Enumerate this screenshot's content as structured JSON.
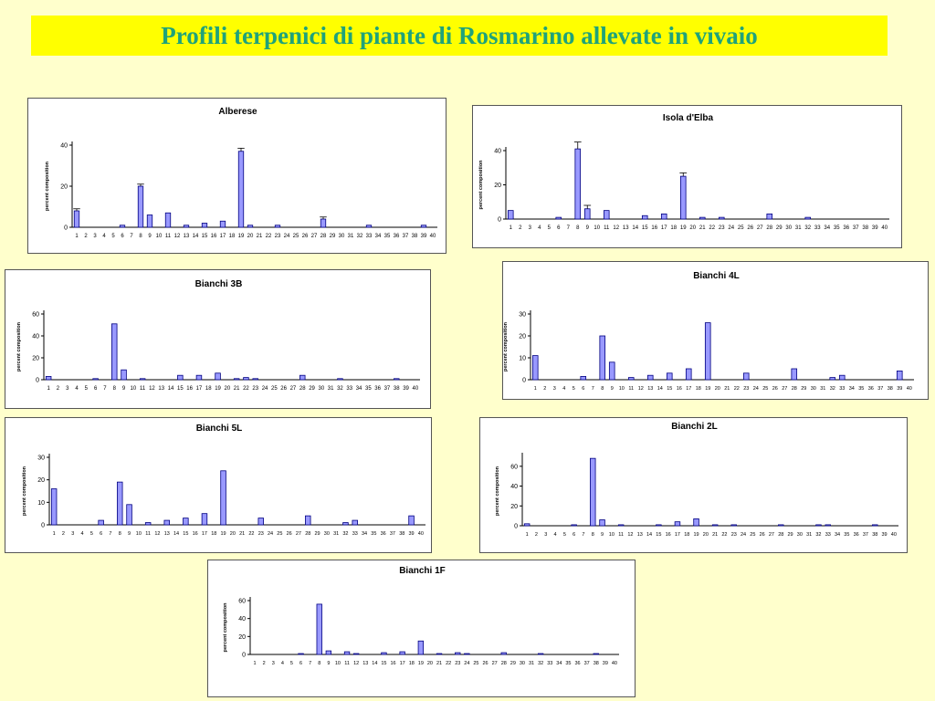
{
  "page": {
    "title": "Profili terpenici di piante di Rosmarino allevate in vivaio"
  },
  "colors": {
    "background": "#ffffcc",
    "title_bar": "#ffff00",
    "title_text": "#1fa37a",
    "bar_fill": "#9999ff",
    "bar_stroke": "#000080"
  },
  "chart_data": [
    {
      "type": "bar",
      "title": "Alberese",
      "ylabel": "percent composition",
      "ylim": [
        0,
        40
      ],
      "yticks": [
        0,
        20,
        40
      ],
      "categories": [
        "1",
        "2",
        "3",
        "4",
        "5",
        "6",
        "7",
        "8",
        "9",
        "10",
        "11",
        "12",
        "13",
        "14",
        "15",
        "16",
        "17",
        "18",
        "19",
        "20",
        "21",
        "22",
        "23",
        "24",
        "25",
        "26",
        "27",
        "28",
        "29",
        "30",
        "31",
        "32",
        "33",
        "34",
        "35",
        "36",
        "37",
        "38",
        "39",
        "40"
      ],
      "values": [
        8,
        0,
        0,
        0,
        0,
        1,
        0,
        20,
        6,
        0,
        7,
        0,
        1,
        0,
        2,
        0,
        3,
        0,
        37,
        1,
        0,
        0,
        1,
        0,
        0,
        0,
        0,
        4,
        0,
        0,
        0,
        0,
        1,
        0,
        0,
        0,
        0,
        0,
        1,
        0
      ],
      "errors": [
        1,
        0,
        0,
        0,
        0,
        0,
        0,
        1,
        0,
        0,
        0,
        0,
        0,
        0,
        0,
        0,
        0,
        0,
        1.5,
        0,
        0,
        0,
        0,
        0,
        0,
        0,
        0,
        1,
        0,
        0,
        0,
        0,
        0,
        0,
        0,
        0,
        0,
        0,
        0,
        0
      ]
    },
    {
      "type": "bar",
      "title": "Isola d'Elba",
      "ylabel": "percent composition",
      "ylim": [
        0,
        40
      ],
      "yticks": [
        0,
        20,
        40
      ],
      "categories": [
        "1",
        "2",
        "3",
        "4",
        "5",
        "6",
        "7",
        "8",
        "9",
        "10",
        "11",
        "12",
        "13",
        "14",
        "15",
        "16",
        "17",
        "18",
        "19",
        "20",
        "21",
        "22",
        "23",
        "24",
        "25",
        "26",
        "27",
        "28",
        "29",
        "30",
        "31",
        "32",
        "33",
        "34",
        "35",
        "36",
        "37",
        "38",
        "39",
        "40"
      ],
      "values": [
        5,
        0,
        0,
        0,
        0,
        1,
        0,
        41,
        6,
        0,
        5,
        0,
        0,
        0,
        2,
        0,
        3,
        0,
        25,
        0,
        1,
        0,
        1,
        0,
        0,
        0,
        0,
        3,
        0,
        0,
        0,
        1,
        0,
        0,
        0,
        0,
        0,
        0,
        0,
        0
      ],
      "errors": [
        0,
        0,
        0,
        0,
        0,
        0,
        0,
        4,
        2,
        0,
        0,
        0,
        0,
        0,
        0,
        0,
        0,
        0,
        2,
        0,
        0,
        0,
        0,
        0,
        0,
        0,
        0,
        0,
        0,
        0,
        0,
        0,
        0,
        0,
        0,
        0,
        0,
        0,
        0,
        0
      ]
    },
    {
      "type": "bar",
      "title": "Bianchi 3B",
      "ylabel": "percent composition",
      "ylim": [
        0,
        60
      ],
      "yticks": [
        0,
        20,
        40,
        60
      ],
      "categories": [
        "1",
        "2",
        "3",
        "4",
        "5",
        "6",
        "7",
        "8",
        "9",
        "10",
        "11",
        "12",
        "13",
        "14",
        "15",
        "16",
        "17",
        "18",
        "19",
        "20",
        "21",
        "22",
        "23",
        "24",
        "25",
        "26",
        "27",
        "28",
        "29",
        "30",
        "31",
        "32",
        "33",
        "34",
        "35",
        "36",
        "37",
        "38",
        "39",
        "40"
      ],
      "values": [
        3,
        0,
        0,
        0,
        0,
        1,
        0,
        51,
        9,
        0,
        1,
        0,
        0,
        0,
        4,
        0,
        4,
        0,
        6,
        0,
        1,
        2,
        1,
        0,
        0,
        0,
        0,
        4,
        0,
        0,
        0,
        1,
        0,
        0,
        0,
        0,
        0,
        1,
        0,
        0
      ]
    },
    {
      "type": "bar",
      "title": "Bianchi 4L",
      "ylabel": "percent composition",
      "ylim": [
        0,
        30
      ],
      "yticks": [
        0,
        10,
        20,
        30
      ],
      "categories": [
        "1",
        "2",
        "3",
        "4",
        "5",
        "6",
        "7",
        "8",
        "9",
        "10",
        "11",
        "12",
        "13",
        "14",
        "15",
        "16",
        "17",
        "18",
        "19",
        "20",
        "21",
        "22",
        "23",
        "24",
        "25",
        "26",
        "27",
        "28",
        "29",
        "30",
        "31",
        "32",
        "33",
        "34",
        "35",
        "36",
        "37",
        "38",
        "39",
        "40"
      ],
      "values": [
        11,
        0,
        0,
        0,
        0,
        1.5,
        0,
        20,
        8,
        0,
        1,
        0,
        2,
        0,
        3,
        0,
        5,
        0,
        26,
        0,
        0,
        0,
        3,
        0,
        0,
        0,
        0,
        5,
        0,
        0,
        0,
        1,
        2,
        0,
        0,
        0,
        0,
        0,
        4,
        0
      ]
    },
    {
      "type": "bar",
      "title": "Bianchi 5L",
      "ylabel": "percent composition",
      "ylim": [
        0,
        30
      ],
      "yticks": [
        0,
        10,
        20,
        30
      ],
      "categories": [
        "1",
        "2",
        "3",
        "4",
        "5",
        "6",
        "7",
        "8",
        "9",
        "10",
        "11",
        "12",
        "13",
        "14",
        "15",
        "16",
        "17",
        "18",
        "19",
        "20",
        "21",
        "22",
        "23",
        "24",
        "25",
        "26",
        "27",
        "28",
        "29",
        "30",
        "31",
        "32",
        "33",
        "34",
        "35",
        "36",
        "37",
        "38",
        "39",
        "40"
      ],
      "values": [
        16,
        0,
        0,
        0,
        0,
        2,
        0,
        19,
        9,
        0,
        1,
        0,
        2,
        0,
        3,
        0,
        5,
        0,
        24,
        0,
        0,
        0,
        3,
        0,
        0,
        0,
        0,
        4,
        0,
        0,
        0,
        1,
        2,
        0,
        0,
        0,
        0,
        0,
        4,
        0
      ]
    },
    {
      "type": "bar",
      "title": "Bianchi 2L",
      "ylabel": "percent composition",
      "ylim": [
        0,
        70
      ],
      "yticks": [
        0,
        20,
        40,
        60
      ],
      "categories": [
        "1",
        "2",
        "3",
        "4",
        "5",
        "6",
        "7",
        "8",
        "9",
        "10",
        "11",
        "12",
        "13",
        "14",
        "15",
        "16",
        "17",
        "18",
        "19",
        "20",
        "21",
        "22",
        "23",
        "24",
        "25",
        "26",
        "27",
        "28",
        "29",
        "30",
        "31",
        "32",
        "33",
        "34",
        "35",
        "36",
        "37",
        "38",
        "39",
        "40"
      ],
      "values": [
        2,
        0,
        0,
        0,
        0,
        1,
        0,
        68,
        6,
        0,
        1,
        0,
        0,
        0,
        1,
        0,
        4,
        0,
        7,
        0,
        1,
        0,
        1,
        0,
        0,
        0,
        0,
        1,
        0,
        0,
        0,
        1,
        1,
        0,
        0,
        0,
        0,
        1,
        0,
        0
      ]
    },
    {
      "type": "bar",
      "title": "Bianchi 1F",
      "ylabel": "percent composition",
      "ylim": [
        0,
        60
      ],
      "yticks": [
        0,
        20,
        40,
        60
      ],
      "categories": [
        "1",
        "2",
        "3",
        "4",
        "5",
        "6",
        "7",
        "8",
        "9",
        "10",
        "11",
        "12",
        "13",
        "14",
        "15",
        "16",
        "17",
        "18",
        "19",
        "20",
        "21",
        "22",
        "23",
        "24",
        "25",
        "26",
        "27",
        "28",
        "29",
        "30",
        "31",
        "32",
        "33",
        "34",
        "35",
        "36",
        "37",
        "38",
        "39",
        "40"
      ],
      "values": [
        0,
        0,
        0,
        0,
        0,
        1,
        0,
        56,
        4,
        0,
        3,
        1,
        0,
        0,
        2,
        0,
        3,
        0,
        15,
        0,
        1,
        0,
        2,
        1,
        0,
        0,
        0,
        2,
        0,
        0,
        0,
        1,
        0,
        0,
        0,
        0,
        0,
        1,
        0,
        0
      ]
    }
  ]
}
